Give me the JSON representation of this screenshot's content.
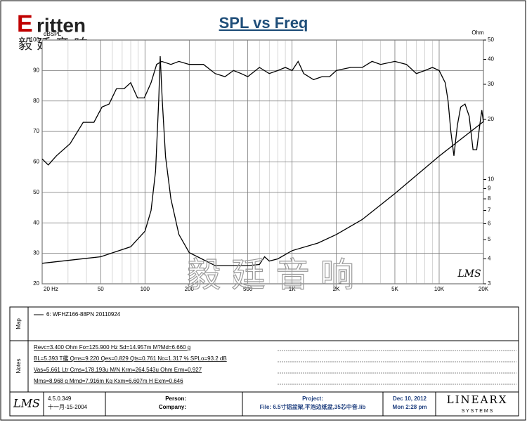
{
  "header": {
    "logo_e": "E",
    "logo": "ritten",
    "logo_cn": "毅 廷 音 响",
    "watermark": "毅 廷 音 响",
    "lms_mark": "LMS"
  },
  "chart_data": {
    "type": "line",
    "title": "SPL vs Freq",
    "y_label": "dBSPL",
    "y2_label": "Ohm",
    "xscale": "log",
    "xlim": [
      20,
      20000
    ],
    "xticks": [
      {
        "value": 20,
        "label": "20 Hz"
      },
      50,
      100,
      200,
      500,
      {
        "value": 1000,
        "label": "1K"
      },
      {
        "value": 2000,
        "label": "2K"
      },
      {
        "value": 5000,
        "label": "5K"
      },
      {
        "value": 10000,
        "label": "10K"
      },
      {
        "value": 20000,
        "label": "20K"
      }
    ],
    "xminorticks": [
      30,
      40,
      60,
      70,
      80,
      90,
      300,
      400,
      600,
      700,
      800,
      900,
      3000,
      4000,
      6000,
      7000,
      8000,
      9000
    ],
    "ylim": [
      20,
      100
    ],
    "yticks": [
      20,
      30,
      40,
      50,
      60,
      70,
      80,
      90,
      100
    ],
    "y2scale": "log",
    "y2lim": [
      3,
      50
    ],
    "y2ticks": [
      3,
      4,
      5,
      6,
      7,
      8,
      9,
      10,
      20,
      30,
      40,
      50
    ],
    "grid": true,
    "series": [
      {
        "name": "6: WFHZ166-88PN 20110924",
        "color": "#000000",
        "x": [
          20,
          22,
          25,
          31,
          38,
          45,
          51,
          57,
          64,
          72,
          80,
          89,
          99,
          110,
          120,
          130,
          150,
          170,
          200,
          250,
          300,
          350,
          400,
          450,
          500,
          600,
          700,
          800,
          900,
          1000,
          1100,
          1200,
          1400,
          1600,
          1800,
          2000,
          2500,
          3000,
          3500,
          4000,
          5000,
          6000,
          7000,
          8000,
          9000,
          10000,
          11000,
          11500,
          12000,
          12600,
          13300,
          14000,
          15000,
          16000,
          17000,
          18000,
          19000,
          19500,
          20000
        ],
        "values": [
          61,
          59,
          62,
          66,
          73,
          73,
          78,
          79,
          84,
          84,
          86,
          81,
          81,
          86,
          92,
          93,
          92,
          93,
          92,
          92,
          89,
          88,
          90,
          89,
          88,
          91,
          89,
          90,
          91,
          90,
          93,
          89,
          87,
          88,
          88,
          90,
          91,
          91,
          93,
          92,
          93,
          92,
          89,
          90,
          91,
          90,
          86,
          80,
          70,
          62,
          72,
          78,
          79,
          75,
          64,
          64,
          73,
          77,
          73
        ]
      },
      {
        "color": "#000000",
        "axis": "y2",
        "x": [
          20,
          50,
          80,
          100,
          110,
          118,
          124,
          127,
          131,
          138,
          150,
          170,
          200,
          300,
          500,
          600,
          650,
          700,
          800,
          1000,
          1500,
          2000,
          3000,
          5000,
          10000,
          20000
        ],
        "values": [
          3.8,
          4.1,
          4.6,
          5.5,
          7,
          11,
          25,
          41.5,
          25,
          13,
          8,
          5.3,
          4.3,
          3.7,
          3.7,
          3.75,
          4.1,
          3.9,
          4.0,
          4.4,
          4.8,
          5.3,
          6.3,
          8.5,
          13.1,
          19.5
        ]
      }
    ]
  },
  "panel": {
    "map_label": "Map",
    "notes_label": "Notes",
    "notes": [
      "Revc=3.400 Ohm  Fo=125.900 Hz  Sd=14.957m M?Md=6.660 g",
      "BL=5.393 T艦  Qms=9.220  Qes=0.829  Qts=0.761  No=1.317 %  SPLo=93.2 dB",
      "Vas=5.661 Ltr  Cms=178.193u M/N  Krm=264.543u Ohm  Erm=0.927",
      "Mms=8.968 g  Mmd=7.916m Kg  Kxm=6.607m H  Exm=0.646"
    ]
  },
  "footer": {
    "lms": "LMS",
    "version": "4.5.0.349",
    "version_date": "十一月-15-2004",
    "person": "Person:",
    "company": "Company:",
    "project": "Project:",
    "file": "File: 6.5寸铝盆架,平泡边纸盆,35芯中音.lib",
    "date": "Dec 10, 2012",
    "time": "Mon  2:28 pm",
    "brand": "LINEARX",
    "brand_sub": "S Y S T E M S"
  }
}
